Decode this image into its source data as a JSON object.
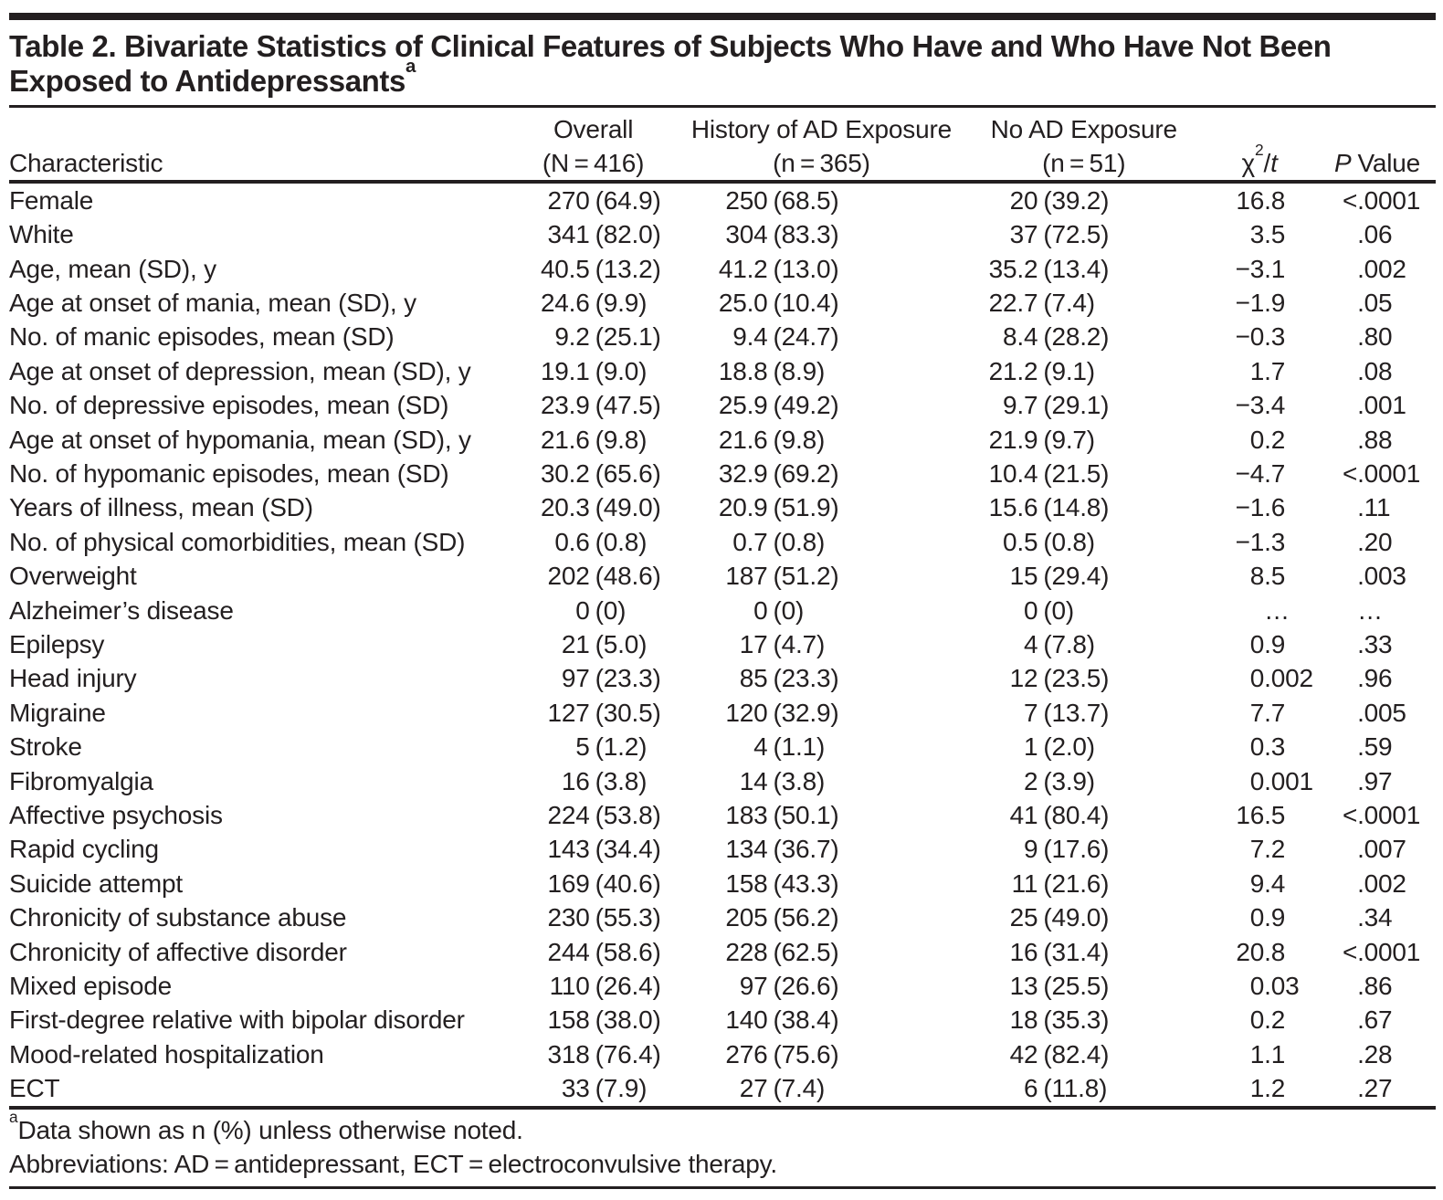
{
  "title": {
    "line1": "Table 2. Bivariate Statistics of Clinical Features of Subjects Who Have and Who Have Not Been",
    "line2": "Exposed to Antidepressants",
    "sup": "a"
  },
  "header": {
    "characteristic": "Characteristic",
    "overall_line1": "Overall",
    "overall_line2": "(N = 416)",
    "history_line1": "History of AD Exposure",
    "history_line2": "(n = 365)",
    "noad_line1": "No AD Exposure",
    "noad_line2": "(n = 51)",
    "chi": {
      "base": "χ",
      "sup": "2",
      "slash": "/",
      "t": "t"
    },
    "p": {
      "italic": "P",
      "rest": "Value"
    }
  },
  "table": {
    "rows": [
      {
        "label": "Female",
        "overall": "270 (64.9)",
        "history": "250 (68.5)",
        "noad": "20 (39.2)",
        "chi": "16.8",
        "p": "<.0001"
      },
      {
        "label": "White",
        "overall": "341 (82.0)",
        "history": "304 (83.3)",
        "noad": "37 (72.5)",
        "chi": "3.5",
        "p": ".06"
      },
      {
        "label": "Age, mean (SD), y",
        "overall": "40.5 (13.2)",
        "history": "41.2 (13.0)",
        "noad": "35.2 (13.4)",
        "chi": "−3.1",
        "p": ".002"
      },
      {
        "label": "Age at onset of mania, mean (SD), y",
        "overall": "24.6 (9.9)",
        "history": "25.0 (10.4)",
        "noad": "22.7 (7.4)",
        "chi": "−1.9",
        "p": ".05"
      },
      {
        "label": "No. of manic episodes, mean (SD)",
        "overall": "9.2 (25.1)",
        "history": "9.4 (24.7)",
        "noad": "8.4 (28.2)",
        "chi": "−0.3",
        "p": ".80"
      },
      {
        "label": "Age at onset of depression, mean (SD), y",
        "overall": "19.1 (9.0)",
        "history": "18.8 (8.9)",
        "noad": "21.2 (9.1)",
        "chi": "1.7",
        "p": ".08"
      },
      {
        "label": "No. of depressive episodes, mean (SD)",
        "overall": "23.9 (47.5)",
        "history": "25.9 (49.2)",
        "noad": "9.7 (29.1)",
        "chi": "−3.4",
        "p": ".001"
      },
      {
        "label": "Age at onset of  hypomania, mean (SD), y",
        "overall": "21.6 (9.8)",
        "history": "21.6 (9.8)",
        "noad": "21.9 (9.7)",
        "chi": "0.2",
        "p": ".88"
      },
      {
        "label": "No. of hypomanic episodes, mean (SD)",
        "overall": "30.2 (65.6)",
        "history": "32.9 (69.2)",
        "noad": "10.4 (21.5)",
        "chi": "−4.7",
        "p": "<.0001"
      },
      {
        "label": "Years of illness, mean (SD)",
        "overall": "20.3 (49.0)",
        "history": "20.9 (51.9)",
        "noad": "15.6 (14.8)",
        "chi": "−1.6",
        "p": ".11"
      },
      {
        "label": "No. of physical comorbidities, mean (SD)",
        "overall": "0.6 (0.8)",
        "history": "0.7 (0.8)",
        "noad": "0.5 (0.8)",
        "chi": "−1.3",
        "p": ".20"
      },
      {
        "label": "Overweight",
        "overall": "202 (48.6)",
        "history": "187 (51.2)",
        "noad": "15 (29.4)",
        "chi": "8.5",
        "p": ".003"
      },
      {
        "label": "Alzheimer’s disease",
        "overall": "0 (0)",
        "history": "0 (0)",
        "noad": "0 (0)",
        "chi": "…",
        "p": "…"
      },
      {
        "label": "Epilepsy",
        "overall": "21 (5.0)",
        "history": "17 (4.7)",
        "noad": "4 (7.8)",
        "chi": "0.9",
        "p": ".33"
      },
      {
        "label": "Head injury",
        "overall": "97 (23.3)",
        "history": "85 (23.3)",
        "noad": "12 (23.5)",
        "chi": "0.002",
        "p": ".96"
      },
      {
        "label": "Migraine",
        "overall": "127 (30.5)",
        "history": "120 (32.9)",
        "noad": "7 (13.7)",
        "chi": "7.7",
        "p": ".005"
      },
      {
        "label": "Stroke",
        "overall": "5 (1.2)",
        "history": "4 (1.1)",
        "noad": "1 (2.0)",
        "chi": "0.3",
        "p": ".59"
      },
      {
        "label": "Fibromyalgia",
        "overall": "16 (3.8)",
        "history": "14 (3.8)",
        "noad": "2 (3.9)",
        "chi": "0.001",
        "p": ".97"
      },
      {
        "label": "Affective psychosis",
        "overall": "224 (53.8)",
        "history": "183 (50.1)",
        "noad": "41 (80.4)",
        "chi": "16.5",
        "p": "<.0001"
      },
      {
        "label": "Rapid cycling",
        "overall": "143 (34.4)",
        "history": "134 (36.7)",
        "noad": "9 (17.6)",
        "chi": "7.2",
        "p": ".007"
      },
      {
        "label": "Suicide attempt",
        "overall": "169 (40.6)",
        "history": "158 (43.3)",
        "noad": "11 (21.6)",
        "chi": "9.4",
        "p": ".002"
      },
      {
        "label": "Chronicity of substance abuse",
        "overall": "230 (55.3)",
        "history": "205 (56.2)",
        "noad": "25 (49.0)",
        "chi": "0.9",
        "p": ".34"
      },
      {
        "label": "Chronicity of affective disorder",
        "overall": "244 (58.6)",
        "history": "228 (62.5)",
        "noad": "16 (31.4)",
        "chi": "20.8",
        "p": "<.0001"
      },
      {
        "label": "Mixed episode",
        "overall": "110 (26.4)",
        "history": "97 (26.6)",
        "noad": "13 (25.5)",
        "chi": "0.03",
        "p": ".86"
      },
      {
        "label": "First-degree relative with bipolar disorder",
        "overall": "158 (38.0)",
        "history": "140 (38.4)",
        "noad": "18 (35.3)",
        "chi": "0.2",
        "p": ".67"
      },
      {
        "label": "Mood-related hospitalization",
        "overall": "318 (76.4)",
        "history": "276 (75.6)",
        "noad": "42 (82.4)",
        "chi": "1.1",
        "p": ".28"
      },
      {
        "label": "ECT",
        "overall": "33 (7.9)",
        "history": "27 (7.4)",
        "noad": "6 (11.8)",
        "chi": "1.2",
        "p": ".27"
      }
    ]
  },
  "footnotes": {
    "a_sup": "a",
    "a_text": "Data shown as n (%) unless otherwise noted.",
    "abbrev": "Abbreviations: AD = antidepressant, ECT = electroconvulsive therapy."
  },
  "colors": {
    "text": "#231f20",
    "rule": "#231f20",
    "background": "#ffffff"
  }
}
